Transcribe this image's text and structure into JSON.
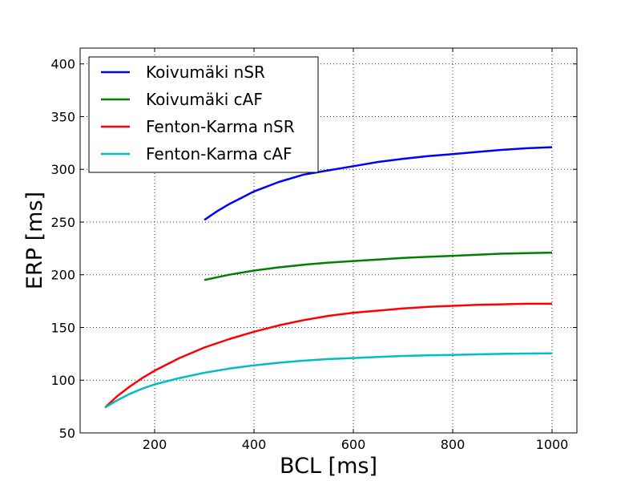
{
  "chart_data": {
    "type": "line",
    "title": "",
    "xlabel": "BCL [ms]",
    "ylabel": "ERP [ms]",
    "xlim": [
      50,
      1050
    ],
    "ylim": [
      50,
      415
    ],
    "xticks": [
      200,
      400,
      600,
      800,
      1000
    ],
    "yticks": [
      50,
      100,
      150,
      200,
      250,
      300,
      350,
      400
    ],
    "grid": true,
    "legend_position": "top-left",
    "series": [
      {
        "name": "Koivumäki nSR",
        "color": "#0000ff",
        "x": [
          300,
          325,
          350,
          375,
          400,
          450,
          500,
          550,
          600,
          650,
          700,
          750,
          800,
          850,
          900,
          950,
          1000
        ],
        "y": [
          252,
          260,
          267,
          273,
          279,
          288,
          295,
          299,
          303,
          307,
          310,
          312.5,
          314.5,
          316.5,
          318.5,
          320,
          321
        ]
      },
      {
        "name": "Koivumäki cAF",
        "color": "#008000",
        "x": [
          300,
          350,
          400,
          450,
          500,
          550,
          600,
          650,
          700,
          750,
          800,
          850,
          900,
          950,
          1000
        ],
        "y": [
          195,
          200,
          204,
          207,
          209.5,
          211.5,
          213,
          214.5,
          216,
          217,
          218,
          219,
          220,
          220.5,
          221
        ]
      },
      {
        "name": "Fenton-Karma nSR",
        "color": "#ff0000",
        "x": [
          100,
          125,
          150,
          175,
          200,
          250,
          300,
          350,
          400,
          450,
          500,
          550,
          600,
          650,
          700,
          750,
          800,
          850,
          900,
          950,
          1000
        ],
        "y": [
          74,
          85,
          94,
          102,
          109,
          121,
          131,
          139,
          146,
          152,
          157,
          161,
          164,
          166,
          168,
          169.5,
          170.5,
          171.5,
          172,
          172.5,
          172.5
        ]
      },
      {
        "name": "Fenton-Karma cAF",
        "color": "#00bfbf",
        "x": [
          100,
          125,
          150,
          175,
          200,
          250,
          300,
          350,
          400,
          450,
          500,
          550,
          600,
          650,
          700,
          750,
          800,
          850,
          900,
          950,
          1000
        ],
        "y": [
          74,
          81,
          87,
          92,
          96,
          102,
          107,
          111,
          114,
          116.5,
          118.5,
          120,
          121,
          122,
          123,
          123.5,
          124,
          124.5,
          125,
          125.3,
          125.5
        ]
      }
    ]
  }
}
